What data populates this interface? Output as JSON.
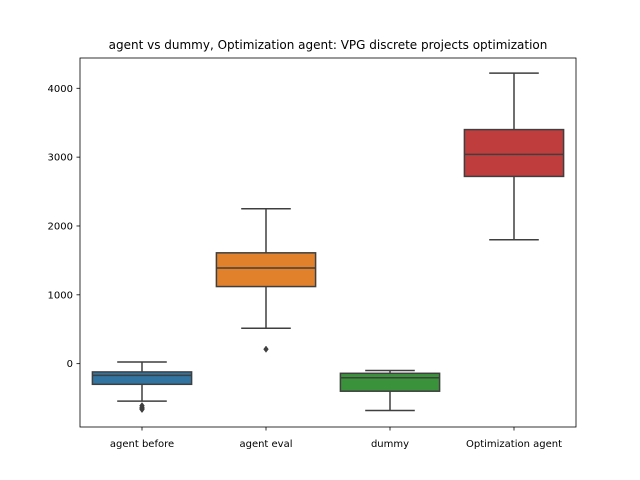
{
  "chart_data": {
    "type": "box",
    "title": "agent vs dummy, Optimization agent: VPG discrete projects optimization",
    "xlabel": "",
    "ylabel": "",
    "categories": [
      "agent before",
      "agent eval",
      "dummy",
      "Optimization agent"
    ],
    "yticks": [
      0,
      1000,
      2000,
      3000,
      4000
    ],
    "ylim": [
      -920,
      4440
    ],
    "grid": false,
    "boxes": [
      {
        "category": "agent before",
        "color": "#3274a1",
        "whisker_low": -545,
        "q1": -300,
        "median": -170,
        "q3": -120,
        "whisker_high": 25,
        "outliers": [
          -610,
          -635,
          -650,
          -665
        ]
      },
      {
        "category": "agent eval",
        "color": "#e1812c",
        "whisker_low": 515,
        "q1": 1120,
        "median": 1390,
        "q3": 1610,
        "whisker_high": 2250,
        "outliers": [
          210
        ]
      },
      {
        "category": "dummy",
        "color": "#3a923a",
        "whisker_low": -680,
        "q1": -400,
        "median": -205,
        "q3": -140,
        "whisker_high": -100,
        "outliers": []
      },
      {
        "category": "Optimization agent",
        "color": "#c03d3e",
        "whisker_low": 1800,
        "q1": 2720,
        "median": 3040,
        "q3": 3400,
        "whisker_high": 4220,
        "outliers": []
      }
    ]
  }
}
